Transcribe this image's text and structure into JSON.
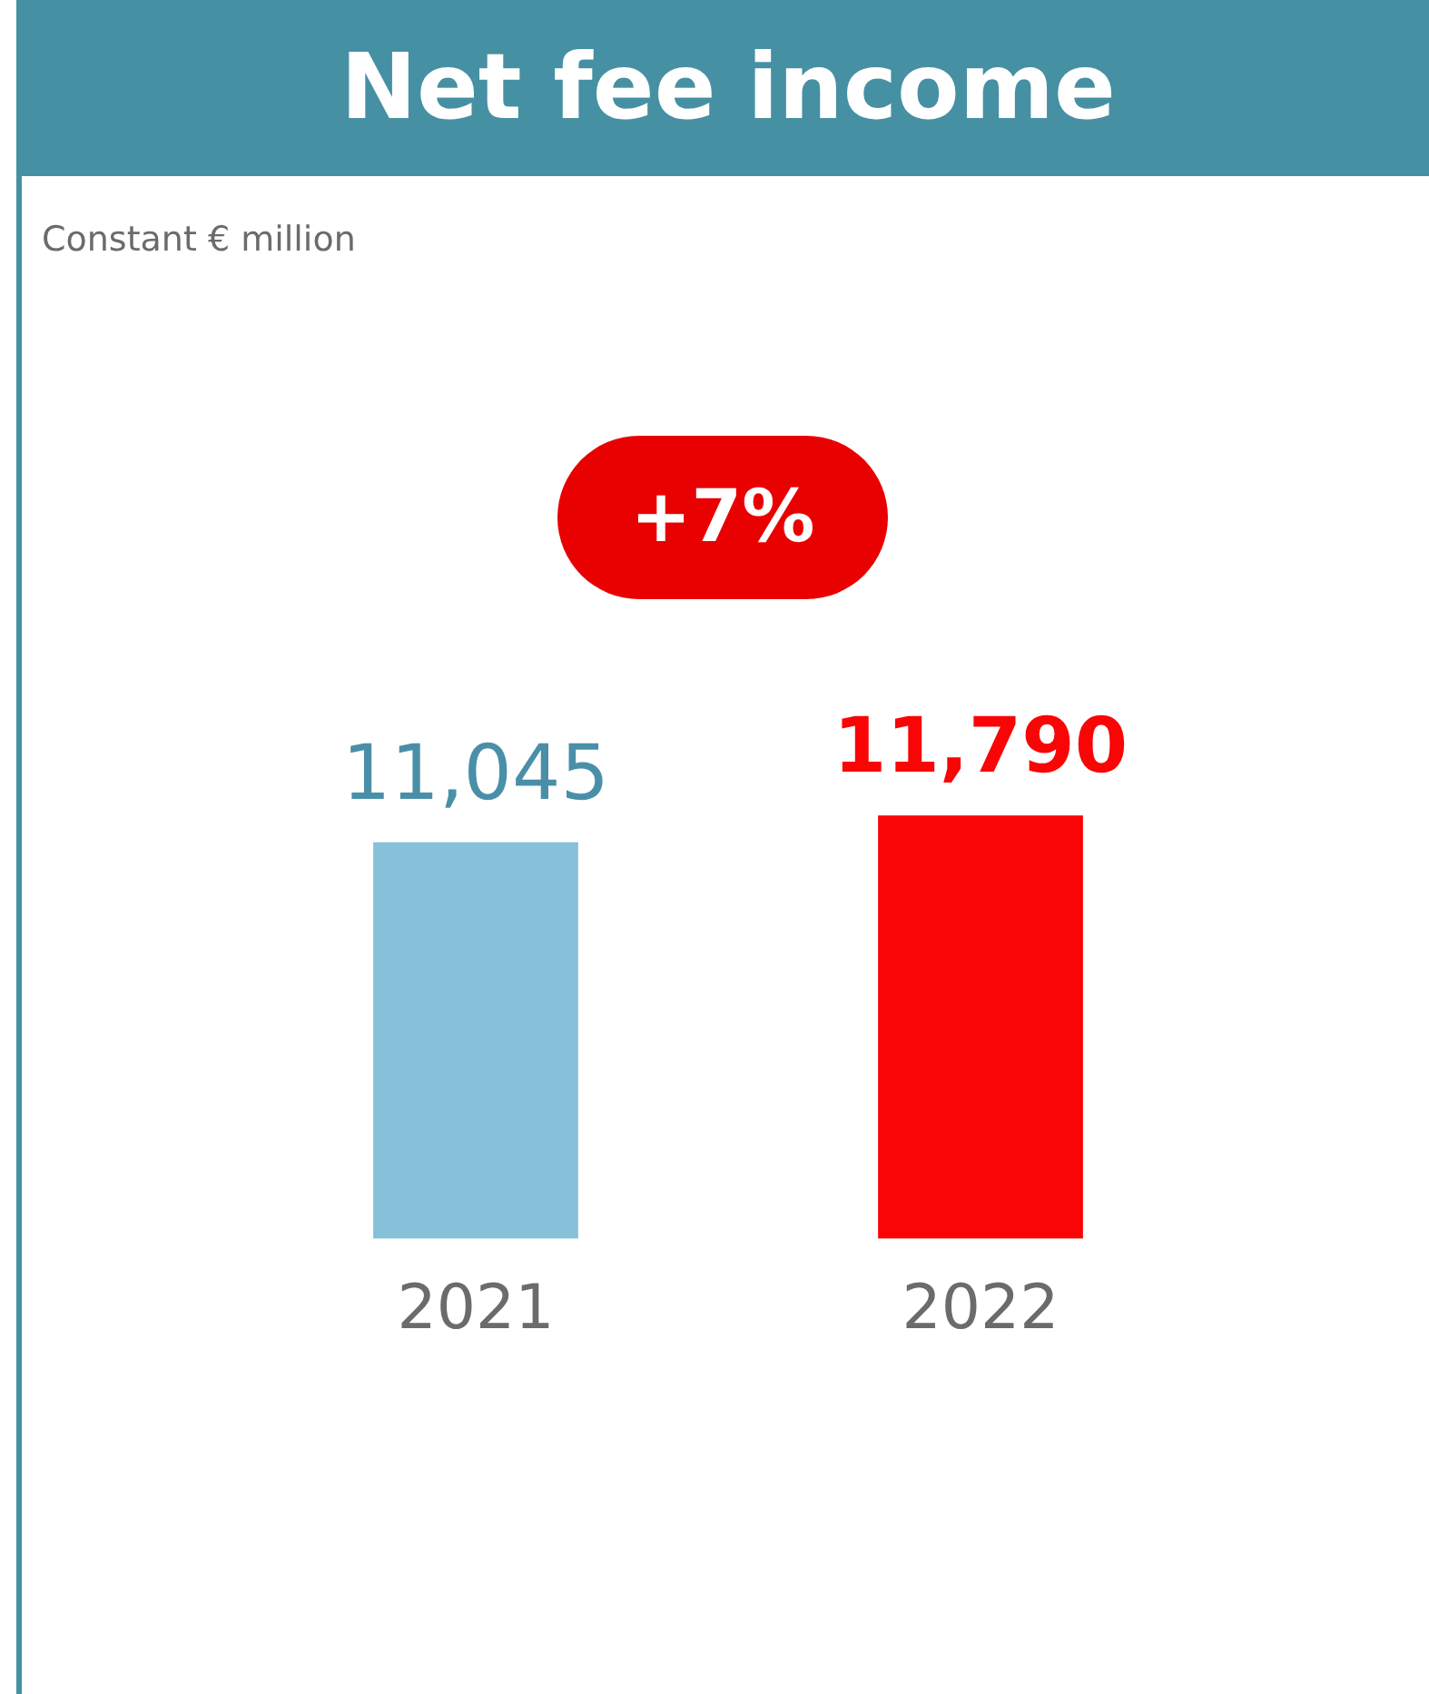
{
  "chart_data": {
    "type": "bar",
    "title": "Net fee income",
    "subtitle": "Constant € million",
    "categories": [
      "2021",
      "2022"
    ],
    "values": [
      11045,
      11790
    ],
    "colors": [
      "#85c1d9",
      "#f90505"
    ],
    "value_labels": [
      "11,045",
      "11,790"
    ],
    "grid": false,
    "legend": false,
    "tick_labels": "x",
    "annotations": [
      "+7%"
    ]
  }
}
